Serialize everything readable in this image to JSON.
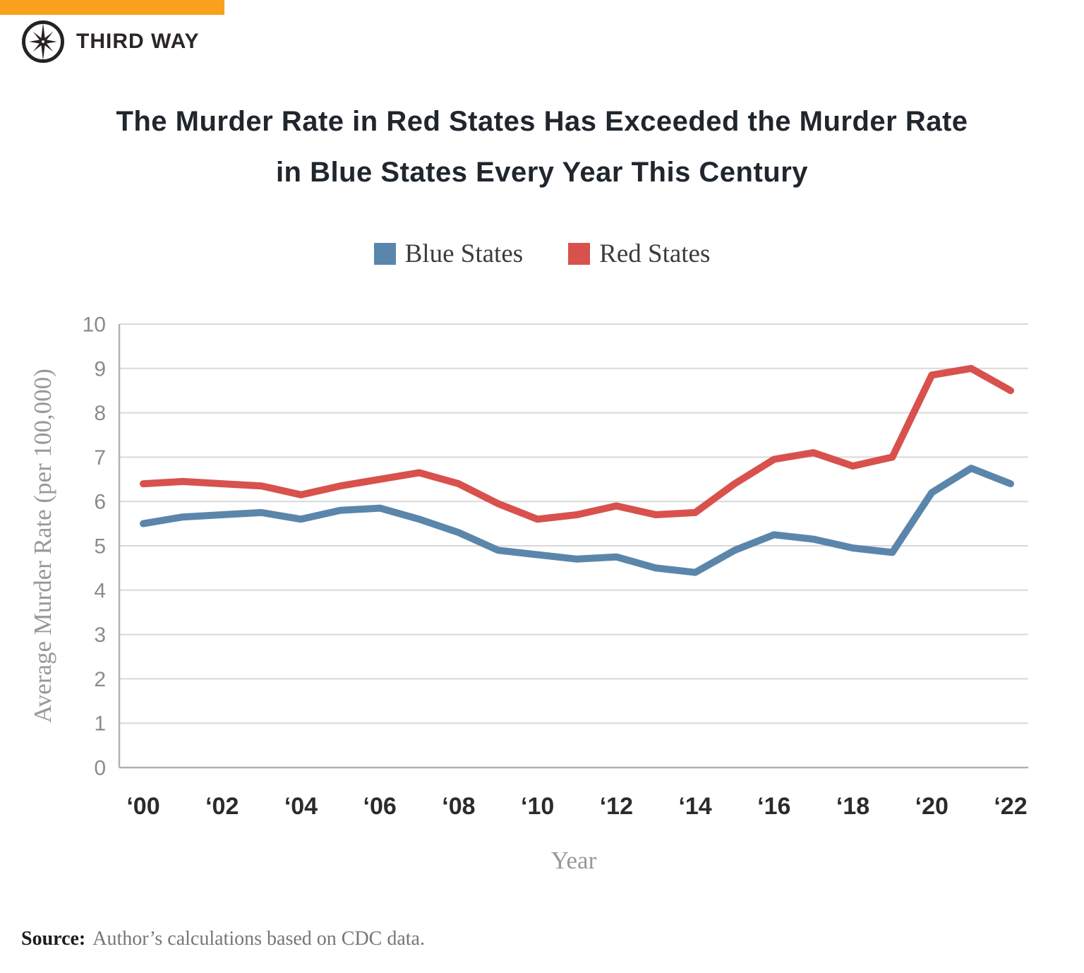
{
  "brand": {
    "name": "THIRD WAY",
    "accent_color": "#F9A11C",
    "logo_color": "#262223"
  },
  "title": {
    "lines": [
      "The Murder Rate in Red States Has Exceeded the Murder Rate",
      "in Blue States Every Year This Century"
    ]
  },
  "legend": [
    {
      "label": "Blue States",
      "color": "#5B86AB"
    },
    {
      "label": "Red States",
      "color": "#D8514D"
    }
  ],
  "source": {
    "prefix": "Source:",
    "text": "Author’s calculations based on CDC data."
  },
  "chart_data": {
    "type": "line",
    "title": "The Murder Rate in Red States Has Exceeded the Murder Rate in Blue States Every Year This Century",
    "xlabel": "Year",
    "ylabel": "Average Murder Rate (per 100,000)",
    "x": [
      2000,
      2001,
      2002,
      2003,
      2004,
      2005,
      2006,
      2007,
      2008,
      2009,
      2010,
      2011,
      2012,
      2013,
      2014,
      2015,
      2016,
      2017,
      2018,
      2019,
      2020,
      2021,
      2022
    ],
    "xtick_labels": [
      "‘00",
      "‘02",
      "‘04",
      "‘06",
      "‘08",
      "‘10",
      "‘12",
      "‘14",
      "‘16",
      "‘18",
      "‘20",
      "‘22"
    ],
    "xtick_years": [
      2000,
      2002,
      2004,
      2006,
      2008,
      2010,
      2012,
      2014,
      2016,
      2018,
      2020,
      2022
    ],
    "ylim": [
      0,
      10
    ],
    "yticks": [
      0,
      1,
      2,
      3,
      4,
      5,
      6,
      7,
      8,
      9,
      10
    ],
    "grid": true,
    "legend_position": "top",
    "series": [
      {
        "name": "Blue States",
        "color": "#5B86AB",
        "values": [
          5.5,
          5.65,
          5.7,
          5.75,
          5.6,
          5.8,
          5.85,
          5.6,
          5.3,
          4.9,
          4.8,
          4.7,
          4.75,
          4.5,
          4.4,
          4.9,
          5.25,
          5.15,
          4.95,
          4.85,
          6.2,
          6.75,
          6.4
        ]
      },
      {
        "name": "Red States",
        "color": "#D8514D",
        "values": [
          6.4,
          6.45,
          6.4,
          6.35,
          6.15,
          6.35,
          6.5,
          6.65,
          6.4,
          5.95,
          5.6,
          5.7,
          5.9,
          5.7,
          5.75,
          6.4,
          6.95,
          7.1,
          6.8,
          7.0,
          8.85,
          9.0,
          8.5
        ]
      }
    ],
    "style": {
      "grid_color": "#d9d9d9",
      "axis_color": "#b2b1b1",
      "tick_label_color": "#8b8b8b",
      "xtick_label_color": "#2b2b2b",
      "axis_title_color": "#989898",
      "line_width": 10
    }
  }
}
